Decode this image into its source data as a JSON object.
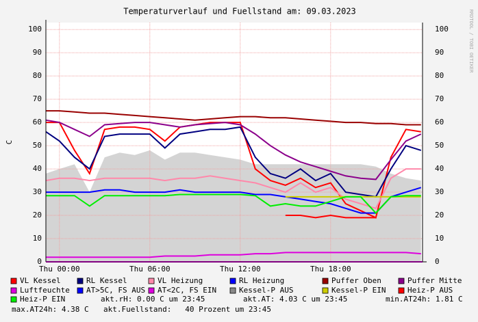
{
  "chart_data": {
    "type": "line",
    "title": "Temperaturverlauf und Fuellstand am: 09.03.2023",
    "y_label": "C",
    "watermark": "RRDTOOL / TOBI OETIKER",
    "x": [
      -0.9,
      0,
      1,
      2,
      3,
      4,
      5,
      6,
      7,
      8,
      9,
      10,
      11,
      12,
      13,
      14,
      15,
      16,
      17,
      18,
      19,
      20,
      21,
      22,
      23,
      24
    ],
    "xlim": [
      -0.9,
      24.1
    ],
    "xticks": [
      {
        "value": 0,
        "label": "Thu 00:00"
      },
      {
        "value": 6,
        "label": "Thu 06:00"
      },
      {
        "value": 12,
        "label": "Thu 12:00"
      },
      {
        "value": 18,
        "label": "Thu 18:00"
      }
    ],
    "ylim": [
      0,
      103
    ],
    "yticks": [
      0,
      10,
      20,
      30,
      40,
      50,
      60,
      70,
      80,
      90,
      100
    ],
    "grid": true,
    "series": [
      {
        "name": "VL Kessel",
        "color": "#ff0000",
        "values": [
          60,
          60,
          48,
          38,
          57,
          58,
          58,
          57,
          52,
          58,
          59,
          60,
          60,
          60,
          40,
          35,
          33,
          36,
          32,
          34,
          25,
          22,
          19,
          45,
          57,
          56
        ]
      },
      {
        "name": "RL Kessel",
        "color": "#000080",
        "values": [
          56,
          52,
          45,
          40,
          54,
          55,
          55,
          55,
          49,
          55,
          56,
          57,
          57,
          58,
          45,
          38,
          36,
          40,
          35,
          38,
          30,
          29,
          28,
          40,
          50,
          48
        ]
      },
      {
        "name": "VL Heizung",
        "color": "#ff88aa",
        "values": [
          35,
          36,
          36,
          35,
          36,
          36,
          36,
          36,
          35,
          36,
          36,
          37,
          36,
          35,
          34,
          32,
          30,
          34,
          30,
          32,
          27,
          25,
          23,
          36,
          40,
          40
        ]
      },
      {
        "name": "RL Heizung",
        "color": "#0000ff",
        "values": [
          30,
          30,
          30,
          30,
          31,
          31,
          30,
          30,
          30,
          31,
          30,
          30,
          30,
          30,
          29,
          29,
          28,
          27,
          26,
          25,
          23,
          21,
          21,
          28,
          30,
          32
        ]
      },
      {
        "name": "Puffer Oben",
        "color": "#990000",
        "values": [
          65,
          65,
          64.5,
          64,
          64,
          63.5,
          63,
          62.5,
          62,
          61.5,
          61,
          61.5,
          62,
          62.5,
          62.5,
          62,
          62,
          61.5,
          61,
          60.5,
          60,
          60,
          59.5,
          59.5,
          59,
          59
        ]
      },
      {
        "name": "Puffer Mitte",
        "color": "#8b008b",
        "values": [
          61,
          60,
          57,
          54,
          59,
          59.5,
          60,
          60,
          59,
          58,
          59,
          59.5,
          60,
          59,
          55,
          50,
          46,
          43,
          41,
          39,
          37,
          36,
          35.5,
          44,
          52,
          55
        ]
      },
      {
        "name": "Luftfeuchte",
        "color": "#dd00dd",
        "values": [
          2,
          2,
          2,
          2,
          2,
          2,
          2,
          2,
          2.5,
          2.5,
          2.5,
          3,
          3,
          3,
          3.5,
          3.5,
          4,
          4,
          4,
          4,
          4,
          4,
          4,
          4,
          4,
          3.5
        ]
      },
      {
        "name": "AT>5C, FS AUS",
        "color": "#0000ff",
        "values": [
          null,
          null,
          null,
          null,
          null,
          null,
          null,
          null,
          null,
          null,
          null,
          null,
          null,
          null,
          null,
          null,
          null,
          null,
          null,
          null,
          null,
          null,
          null,
          null,
          null,
          null
        ]
      },
      {
        "name": "AT<2C, FS EIN",
        "color": "#dd00dd",
        "values": [
          null,
          null,
          null,
          null,
          null,
          null,
          null,
          null,
          null,
          null,
          null,
          null,
          null,
          null,
          null,
          null,
          null,
          null,
          null,
          null,
          null,
          null,
          null,
          null,
          null,
          null
        ]
      },
      {
        "name": "Kessel-P AUS",
        "color": "#d4d4d4",
        "area": true,
        "values": [
          38,
          40,
          42,
          30,
          45,
          47,
          46,
          48,
          44,
          47,
          47,
          46,
          45,
          44,
          42,
          42,
          42,
          42,
          42,
          42,
          42,
          42,
          41,
          38,
          36,
          35
        ]
      },
      {
        "name": "Kessel-P EIN",
        "color": "#cccc00",
        "values": [
          null,
          null,
          null,
          null,
          null,
          null,
          null,
          null,
          null,
          null,
          null,
          null,
          null,
          null,
          null,
          null,
          28,
          28,
          28,
          28,
          28,
          28,
          28,
          28,
          28,
          28
        ]
      },
      {
        "name": "Heiz-P AUS",
        "color": "#ff0000",
        "values": [
          null,
          null,
          null,
          null,
          null,
          null,
          null,
          null,
          null,
          null,
          null,
          null,
          null,
          null,
          null,
          null,
          20,
          20,
          19,
          20,
          19,
          19,
          19,
          null,
          null,
          null
        ]
      },
      {
        "name": "Heiz-P EIN",
        "color": "#00ee00",
        "values": [
          28.5,
          28.5,
          28.5,
          24,
          28.5,
          28.5,
          28.5,
          28.5,
          28.5,
          29,
          29,
          29,
          29,
          29,
          28.5,
          24,
          25,
          24,
          24,
          26,
          28,
          28,
          21,
          28,
          28.5,
          28.5
        ]
      }
    ],
    "annotations": [
      "akt.rH: 0.00 C um 23:45",
      "akt.AT: 4.03 C um 23:45",
      "min.AT24h: 1.81 C",
      "max.AT24h: 4.38 C",
      "akt.Fuellstand:   40 Prozent um 23:45"
    ]
  }
}
